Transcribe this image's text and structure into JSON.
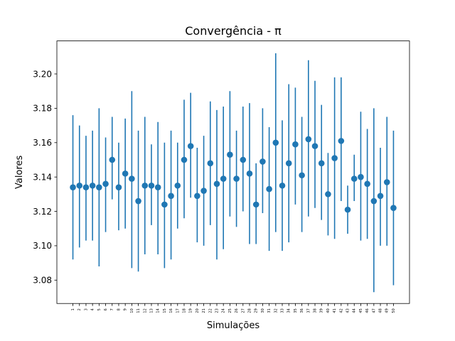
{
  "chart_data": {
    "type": "scatter",
    "title": "Convergência - π",
    "xlabel": "Simulações",
    "ylabel": "Valores",
    "x": [
      1,
      2,
      3,
      4,
      5,
      6,
      7,
      8,
      9,
      10,
      11,
      12,
      13,
      14,
      15,
      16,
      17,
      18,
      19,
      20,
      21,
      22,
      23,
      24,
      25,
      26,
      27,
      28,
      29,
      30,
      31,
      32,
      33,
      34,
      35,
      36,
      37,
      38,
      39,
      40,
      41,
      42,
      43,
      44,
      45,
      46,
      47,
      48,
      49,
      50
    ],
    "xticklabels": [
      "1",
      "2",
      "3",
      "4",
      "5",
      "6",
      "7",
      "8",
      "9",
      "10",
      "11",
      "12",
      "13",
      "14",
      "15",
      "16",
      "17",
      "18",
      "19",
      "20",
      "21",
      "22",
      "23",
      "24",
      "25",
      "26",
      "27",
      "28",
      "29",
      "30",
      "31",
      "32",
      "33",
      "34",
      "35",
      "36",
      "37",
      "38",
      "39",
      "40",
      "41",
      "42",
      "43",
      "44",
      "45",
      "46",
      "47",
      "48",
      "49",
      "50"
    ],
    "yticks": [
      3.08,
      3.1,
      3.12,
      3.14,
      3.16,
      3.18,
      3.2
    ],
    "yticklabels": [
      "3.08",
      "3.10",
      "3.12",
      "3.14",
      "3.16",
      "3.18",
      "3.20"
    ],
    "xlim": [
      -1.45,
      52.45
    ],
    "ylim": [
      3.0664,
      3.2192
    ],
    "grid": false,
    "series": [
      {
        "values": [
          3.134,
          3.135,
          3.134,
          3.135,
          3.134,
          3.136,
          3.15,
          3.134,
          3.142,
          3.139,
          3.126,
          3.135,
          3.135,
          3.134,
          3.124,
          3.129,
          3.135,
          3.15,
          3.158,
          3.129,
          3.132,
          3.148,
          3.136,
          3.139,
          3.153,
          3.139,
          3.15,
          3.142,
          3.124,
          3.149,
          3.133,
          3.16,
          3.135,
          3.148,
          3.159,
          3.141,
          3.162,
          3.158,
          3.148,
          3.13,
          3.151,
          3.161,
          3.121,
          3.139,
          3.14,
          3.136,
          3.126,
          3.129,
          3.137,
          3.122
        ],
        "lower": [
          3.092,
          3.099,
          3.103,
          3.103,
          3.088,
          3.108,
          3.127,
          3.109,
          3.11,
          3.087,
          3.085,
          3.095,
          3.112,
          3.095,
          3.087,
          3.092,
          3.11,
          3.116,
          3.128,
          3.102,
          3.1,
          3.112,
          3.092,
          3.098,
          3.117,
          3.111,
          3.12,
          3.101,
          3.101,
          3.119,
          3.097,
          3.108,
          3.097,
          3.102,
          3.124,
          3.108,
          3.117,
          3.122,
          3.115,
          3.106,
          3.104,
          3.126,
          3.107,
          3.126,
          3.103,
          3.104,
          3.073,
          3.1,
          3.1,
          3.077
        ],
        "upper": [
          3.176,
          3.17,
          3.164,
          3.167,
          3.18,
          3.163,
          3.175,
          3.16,
          3.174,
          3.19,
          3.167,
          3.175,
          3.159,
          3.172,
          3.16,
          3.167,
          3.16,
          3.185,
          3.189,
          3.157,
          3.164,
          3.184,
          3.179,
          3.181,
          3.19,
          3.167,
          3.181,
          3.183,
          3.148,
          3.18,
          3.169,
          3.212,
          3.173,
          3.194,
          3.192,
          3.175,
          3.208,
          3.196,
          3.182,
          3.154,
          3.198,
          3.198,
          3.135,
          3.153,
          3.178,
          3.168,
          3.18,
          3.157,
          3.175,
          3.167
        ]
      }
    ],
    "color": "#1f77b4"
  }
}
